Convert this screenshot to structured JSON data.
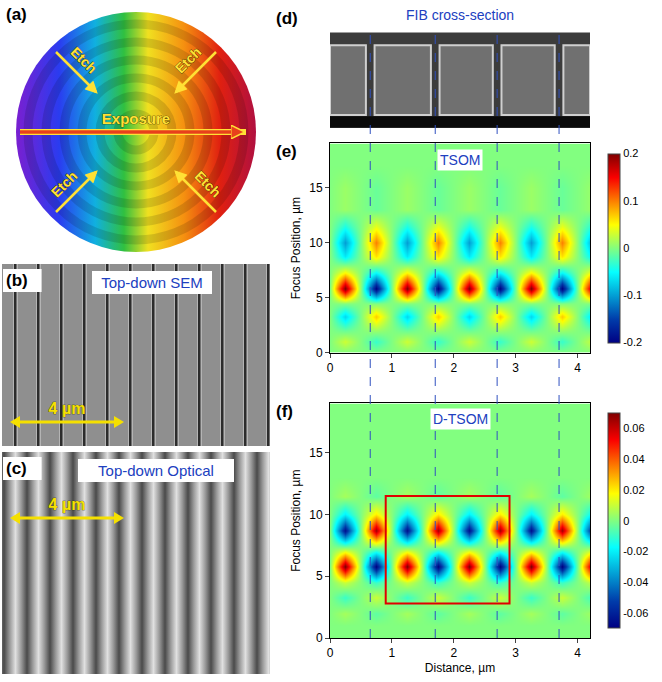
{
  "panels": {
    "a": {
      "letter": "(a)",
      "etch": "Etch",
      "exposure": "Exposure"
    },
    "b": {
      "letter": "(b)",
      "title": "Top-down SEM",
      "scale_bar": "4 µm"
    },
    "c": {
      "letter": "(c)",
      "title": "Top-down Optical",
      "scale_bar": "4 µm"
    },
    "d": {
      "letter": "(d)",
      "title": "FIB cross-section"
    }
  },
  "figure": {
    "dashed_lines_x": [
      0.65,
      1.7,
      2.7,
      3.7
    ]
  },
  "chart_data": [
    {
      "type": "heatmap",
      "letter": "(e)",
      "title": "TSOM",
      "y_label": "Focus Position, µm",
      "xlim": [
        0,
        4.2
      ],
      "xticks": [
        0,
        1,
        2,
        3,
        4
      ],
      "ylim": [
        0,
        19
      ],
      "yticks": [
        0,
        5,
        10,
        15
      ],
      "x": [
        0,
        0.25,
        0.5,
        0.75,
        1,
        1.25,
        1.5,
        1.75,
        2,
        2.25,
        2.5,
        2.75,
        3,
        3.25,
        3.5,
        3.75,
        4,
        4.25
      ],
      "y": [
        0,
        1,
        2,
        3.3,
        4.5,
        5.8,
        7.3,
        8.7,
        10,
        11.5,
        13,
        15,
        17,
        19
      ],
      "z": [
        [
          0,
          0,
          0,
          0,
          0,
          0,
          0,
          0,
          0,
          0,
          0,
          0,
          0,
          0,
          0,
          0,
          0,
          0
        ],
        [
          0,
          0.03,
          0,
          -0.03,
          0,
          0.03,
          0,
          -0.03,
          0,
          0.03,
          0,
          -0.03,
          0,
          0.03,
          0,
          -0.03,
          0,
          0.03
        ],
        [
          0,
          -0.01,
          0,
          0.01,
          0,
          -0.01,
          0,
          0.01,
          0,
          -0.01,
          0,
          0.01,
          0,
          -0.01,
          0,
          0.01,
          0,
          -0.01
        ],
        [
          0,
          -0.07,
          0,
          0.07,
          0,
          -0.07,
          0,
          0.07,
          0,
          -0.07,
          0,
          0.07,
          0,
          -0.07,
          0,
          0.07,
          0,
          -0.07
        ],
        [
          0,
          0,
          0,
          0,
          0,
          0,
          0,
          0,
          0,
          0,
          0,
          0,
          0,
          0,
          0,
          0,
          0,
          0
        ],
        [
          0,
          0.2,
          0,
          -0.2,
          0,
          0.2,
          0,
          -0.2,
          0,
          0.2,
          0,
          -0.2,
          0,
          0.2,
          0,
          -0.2,
          0,
          0.2
        ],
        [
          0,
          0.05,
          0,
          -0.05,
          0,
          0.05,
          0,
          -0.05,
          0,
          0.05,
          0,
          -0.05,
          0,
          0.05,
          0,
          -0.05,
          0,
          0.05
        ],
        [
          0,
          -0.06,
          0,
          0.06,
          0,
          -0.06,
          0,
          0.06,
          0,
          -0.06,
          0,
          0.06,
          0,
          -0.06,
          0,
          0.06,
          0,
          -0.06
        ],
        [
          0,
          -0.1,
          0,
          0.1,
          0,
          -0.1,
          0,
          0.1,
          0,
          -0.1,
          0,
          0.1,
          0,
          -0.1,
          0,
          0.1,
          0,
          -0.1
        ],
        [
          0,
          -0.04,
          0,
          0.04,
          0,
          -0.04,
          0,
          0.04,
          0,
          -0.04,
          0,
          0.04,
          0,
          -0.04,
          0,
          0.04,
          0,
          -0.04
        ],
        [
          0,
          0.01,
          0,
          -0.01,
          0,
          0.01,
          0,
          -0.01,
          0,
          0.01,
          0,
          -0.01,
          0,
          0.01,
          0,
          -0.01,
          0,
          0.01
        ],
        [
          0,
          0.01,
          0,
          -0.01,
          0,
          0.01,
          0,
          -0.01,
          0,
          0.01,
          0,
          -0.01,
          0,
          0.01,
          0,
          -0.01,
          0,
          0.01
        ],
        [
          0,
          0,
          0,
          0,
          0,
          0,
          0,
          0,
          0,
          0,
          0,
          0,
          0,
          0,
          0,
          0,
          0,
          0
        ],
        [
          0,
          0,
          0,
          0,
          0,
          0,
          0,
          0,
          0,
          0,
          0,
          0,
          0,
          0,
          0,
          0,
          0,
          0
        ]
      ],
      "colorbar": {
        "range": [
          -0.2,
          0.2
        ],
        "ticks": [
          -0.2,
          -0.1,
          0,
          0.1,
          0.2
        ]
      }
    },
    {
      "type": "heatmap",
      "letter": "(f)",
      "title": "D-TSOM",
      "x_label": "Distance, µm",
      "y_label": "Focus Position, µm",
      "xlim": [
        0,
        4.2
      ],
      "xticks": [
        0,
        1,
        2,
        3,
        4
      ],
      "ylim": [
        0,
        19
      ],
      "yticks": [
        0,
        5,
        10,
        15
      ],
      "x": [
        0,
        0.25,
        0.5,
        0.75,
        1,
        1.25,
        1.5,
        1.75,
        2,
        2.25,
        2.5,
        2.75,
        3,
        3.25,
        3.5,
        3.75,
        4,
        4.25
      ],
      "y": [
        0,
        1,
        2,
        3.3,
        4.5,
        5.8,
        7.3,
        8.7,
        10,
        11.5,
        13,
        15,
        17,
        19
      ],
      "z": [
        [
          0,
          0,
          0,
          0,
          0,
          0,
          0,
          0,
          0,
          0,
          0,
          0,
          0,
          0,
          0,
          0,
          0,
          0
        ],
        [
          0,
          0,
          0,
          0,
          0,
          0,
          0,
          0,
          0,
          0,
          0,
          0,
          0,
          0,
          0,
          0,
          0,
          0
        ],
        [
          0,
          0.005,
          0,
          -0.005,
          0,
          0.005,
          0,
          -0.005,
          0,
          0.005,
          0,
          -0.005,
          0,
          0.005,
          0,
          -0.005,
          0,
          0.005
        ],
        [
          0,
          -0.01,
          0,
          0.01,
          0,
          -0.01,
          0,
          0.01,
          0,
          -0.01,
          0,
          0.01,
          0,
          -0.01,
          0,
          0.01,
          0,
          -0.01
        ],
        [
          0,
          0.01,
          0,
          -0.01,
          0,
          0.01,
          0,
          -0.01,
          0,
          0.01,
          0,
          -0.01,
          0,
          0.01,
          0,
          -0.01,
          0,
          0.01
        ],
        [
          0,
          0.07,
          0,
          -0.07,
          0,
          0.07,
          0,
          -0.07,
          0,
          0.07,
          0,
          -0.07,
          0,
          0.07,
          0,
          -0.07,
          0,
          0.07
        ],
        [
          0,
          0,
          0,
          0,
          0,
          0,
          0,
          0,
          0,
          0,
          0,
          0,
          0,
          0,
          0,
          0,
          0,
          0
        ],
        [
          0,
          -0.065,
          0,
          0.065,
          0,
          -0.065,
          0,
          0.065,
          0,
          -0.065,
          0,
          0.065,
          0,
          -0.065,
          0,
          0.065,
          0,
          -0.065
        ],
        [
          0,
          -0.02,
          0,
          0.02,
          0,
          -0.02,
          0,
          0.02,
          0,
          -0.02,
          0,
          0.02,
          0,
          -0.02,
          0,
          0.02,
          0,
          -0.02
        ],
        [
          0,
          0.005,
          0,
          -0.005,
          0,
          0.005,
          0,
          -0.005,
          0,
          0.005,
          0,
          -0.005,
          0,
          0.005,
          0,
          -0.005,
          0,
          0.005
        ],
        [
          0,
          0,
          0,
          0,
          0,
          0,
          0,
          0,
          0,
          0,
          0,
          0,
          0,
          0,
          0,
          0,
          0,
          0
        ],
        [
          0,
          0,
          0,
          0,
          0,
          0,
          0,
          0,
          0,
          0,
          0,
          0,
          0,
          0,
          0,
          0,
          0,
          0
        ],
        [
          0,
          0,
          0,
          0,
          0,
          0,
          0,
          0,
          0,
          0,
          0,
          0,
          0,
          0,
          0,
          0,
          0,
          0
        ],
        [
          0,
          0,
          0,
          0,
          0,
          0,
          0,
          0,
          0,
          0,
          0,
          0,
          0,
          0,
          0,
          0,
          0,
          0
        ]
      ],
      "colorbar": {
        "range": [
          -0.07,
          0.07
        ],
        "ticks": [
          -0.06,
          -0.04,
          -0.02,
          0,
          0.02,
          0.04,
          0.06
        ]
      },
      "highlight_box": {
        "x": [
          0.9,
          2.9
        ],
        "y": [
          2.8,
          11.5
        ]
      }
    }
  ]
}
